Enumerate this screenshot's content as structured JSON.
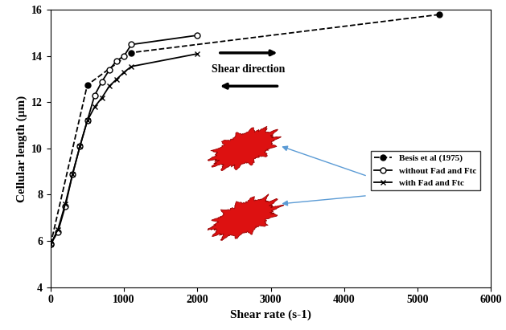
{
  "chart_data": {
    "type": "line",
    "x_label": "Shear rate (s-1)",
    "y_label": "Cellular length (μm)",
    "annotations": [
      "Shear direction"
    ],
    "xlim": [
      0,
      6000
    ],
    "xticks": [
      0,
      1000,
      2000,
      3000,
      4000,
      5000,
      6000
    ],
    "ylim": [
      4,
      16
    ],
    "yticks": [
      4,
      6,
      8,
      10,
      12,
      14,
      16
    ],
    "legend": "center right",
    "series": [
      {
        "name": "Besis et al (1975)",
        "color": "#000000",
        "marker": "circle",
        "line_style": "dashed",
        "x": [
          0,
          500,
          1100,
          5300
        ],
        "values": [
          5.85,
          12.75,
          14.15,
          15.8
        ]
      },
      {
        "name": "without Fad and Ftc",
        "color": "#000000",
        "marker": "open_circle",
        "line_style": "solid",
        "x": [
          0,
          100,
          200,
          300,
          400,
          500,
          600,
          700,
          800,
          900,
          1000,
          1100,
          2000
        ],
        "values": [
          5.85,
          6.4,
          7.5,
          8.9,
          10.1,
          11.2,
          12.3,
          12.9,
          13.4,
          13.8,
          14.0,
          14.5,
          14.9
        ]
      },
      {
        "name": "with Fad and Ftc",
        "color": "#000000",
        "marker": "x",
        "line_style": "solid",
        "x": [
          0,
          100,
          200,
          300,
          400,
          500,
          600,
          700,
          800,
          900,
          1000,
          1100,
          2000
        ],
        "values": [
          5.85,
          6.5,
          7.6,
          8.9,
          10.1,
          11.2,
          11.8,
          12.2,
          12.7,
          13.0,
          13.3,
          13.55,
          14.1
        ]
      }
    ]
  }
}
